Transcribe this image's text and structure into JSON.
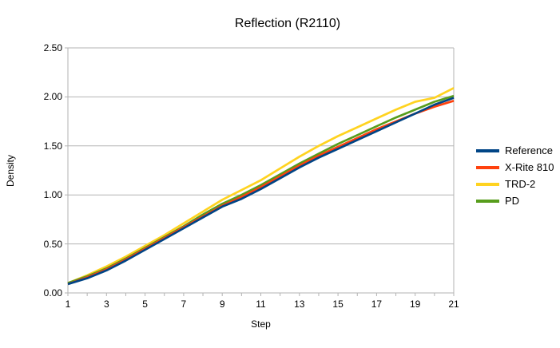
{
  "chart_data": {
    "type": "line",
    "title": "Reflection (R2110)",
    "xlabel": "Step",
    "ylabel": "Density",
    "x": [
      1,
      2,
      3,
      4,
      5,
      6,
      7,
      8,
      9,
      10,
      11,
      12,
      13,
      14,
      15,
      16,
      17,
      18,
      19,
      20,
      21
    ],
    "xlim": [
      1,
      21
    ],
    "ylim": [
      0,
      2.5
    ],
    "y_tick_step": 0.5,
    "y_tick_labels": [
      "0.00",
      "0.50",
      "1.00",
      "1.50",
      "2.00",
      "2.50"
    ],
    "x_labeled_ticks": [
      1,
      3,
      5,
      7,
      9,
      11,
      13,
      15,
      17,
      19,
      21
    ],
    "grid": "horizontal-only",
    "legend_position": "right",
    "series": [
      {
        "name": "Reference",
        "color": "#004586",
        "values": [
          0.09,
          0.15,
          0.23,
          0.33,
          0.44,
          0.55,
          0.66,
          0.77,
          0.88,
          0.96,
          1.06,
          1.17,
          1.28,
          1.38,
          1.47,
          1.56,
          1.65,
          1.74,
          1.83,
          1.92,
          1.99
        ]
      },
      {
        "name": "X-Rite 810",
        "color": "#ff420e",
        "values": [
          0.09,
          0.16,
          0.24,
          0.34,
          0.45,
          0.56,
          0.67,
          0.78,
          0.89,
          0.98,
          1.08,
          1.19,
          1.3,
          1.4,
          1.49,
          1.58,
          1.67,
          1.75,
          1.83,
          1.9,
          1.96
        ]
      },
      {
        "name": "TRD-2",
        "color": "#ffd320",
        "values": [
          0.1,
          0.18,
          0.27,
          0.37,
          0.48,
          0.59,
          0.71,
          0.83,
          0.95,
          1.05,
          1.15,
          1.27,
          1.39,
          1.5,
          1.6,
          1.69,
          1.78,
          1.87,
          1.95,
          1.99,
          2.09
        ]
      },
      {
        "name": "PD",
        "color": "#579d1c",
        "values": [
          0.1,
          0.17,
          0.25,
          0.35,
          0.46,
          0.57,
          0.68,
          0.8,
          0.91,
          1.0,
          1.1,
          1.21,
          1.32,
          1.42,
          1.52,
          1.61,
          1.7,
          1.79,
          1.87,
          1.95,
          2.01
        ]
      }
    ],
    "draw_order": [
      2,
      3,
      1,
      0
    ],
    "colors": {
      "grid": "#b3b3b3",
      "axis": "#b3b3b3",
      "text": "#000000",
      "background": "#ffffff"
    }
  },
  "layout_note": ""
}
